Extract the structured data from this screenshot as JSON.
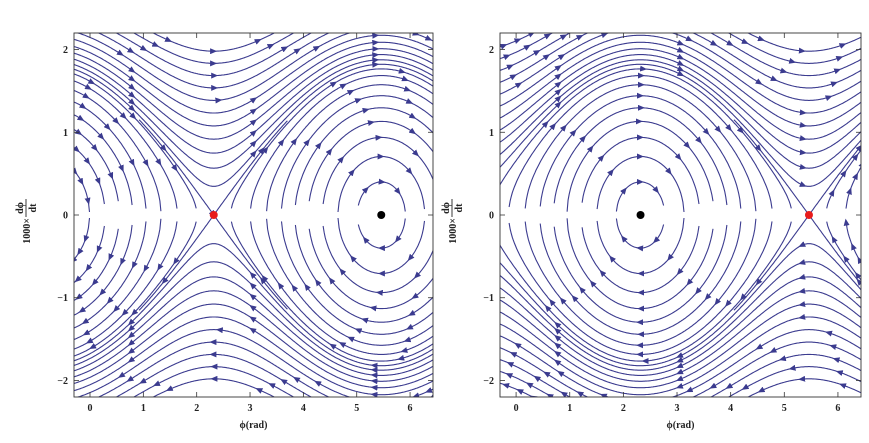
{
  "chart_data": [
    {
      "type": "streamplot",
      "xlabel": "ϕ(rad)",
      "ylabel_numerator": "dϕ",
      "ylabel_prefix": "1000×",
      "ylabel_denominator": "dt",
      "xlim": [
        -0.3,
        6.43
      ],
      "ylim": [
        -2.2,
        2.2
      ],
      "xticks": [
        "0",
        "1",
        "2",
        "3",
        "4",
        "5",
        "6"
      ],
      "xtick_values": [
        0,
        1,
        2,
        3,
        4,
        5,
        6
      ],
      "yticks": [
        "−2",
        "−1",
        "0",
        "1",
        "2"
      ],
      "ytick_values": [
        -2,
        -1,
        0,
        1,
        2
      ],
      "grid": false,
      "frame": true,
      "line_color": "#3b3b8f",
      "equilibria": [
        {
          "phi": 2.32,
          "rate": 0,
          "kind": "saddle",
          "color": "#e81c1c"
        },
        {
          "phi": 5.46,
          "rate": 0,
          "kind": "center",
          "color": "#000000"
        }
      ]
    },
    {
      "type": "streamplot",
      "xlabel": "ϕ(rad)",
      "ylabel_numerator": "dϕ",
      "ylabel_prefix": "1000×",
      "ylabel_denominator": "dt",
      "xlim": [
        -0.3,
        6.43
      ],
      "ylim": [
        -2.2,
        2.2
      ],
      "xticks": [
        "0",
        "1",
        "2",
        "3",
        "4",
        "5",
        "6"
      ],
      "xtick_values": [
        0,
        1,
        2,
        3,
        4,
        5,
        6
      ],
      "yticks": [
        "−2",
        "−1",
        "0",
        "1",
        "2"
      ],
      "ytick_values": [
        -2,
        -1,
        0,
        1,
        2
      ],
      "grid": false,
      "frame": true,
      "line_color": "#3b3b8f",
      "equilibria": [
        {
          "phi": 2.32,
          "rate": 0,
          "kind": "center",
          "color": "#000000"
        },
        {
          "phi": 5.46,
          "rate": 0,
          "kind": "saddle",
          "color": "#e81c1c"
        }
      ]
    }
  ]
}
